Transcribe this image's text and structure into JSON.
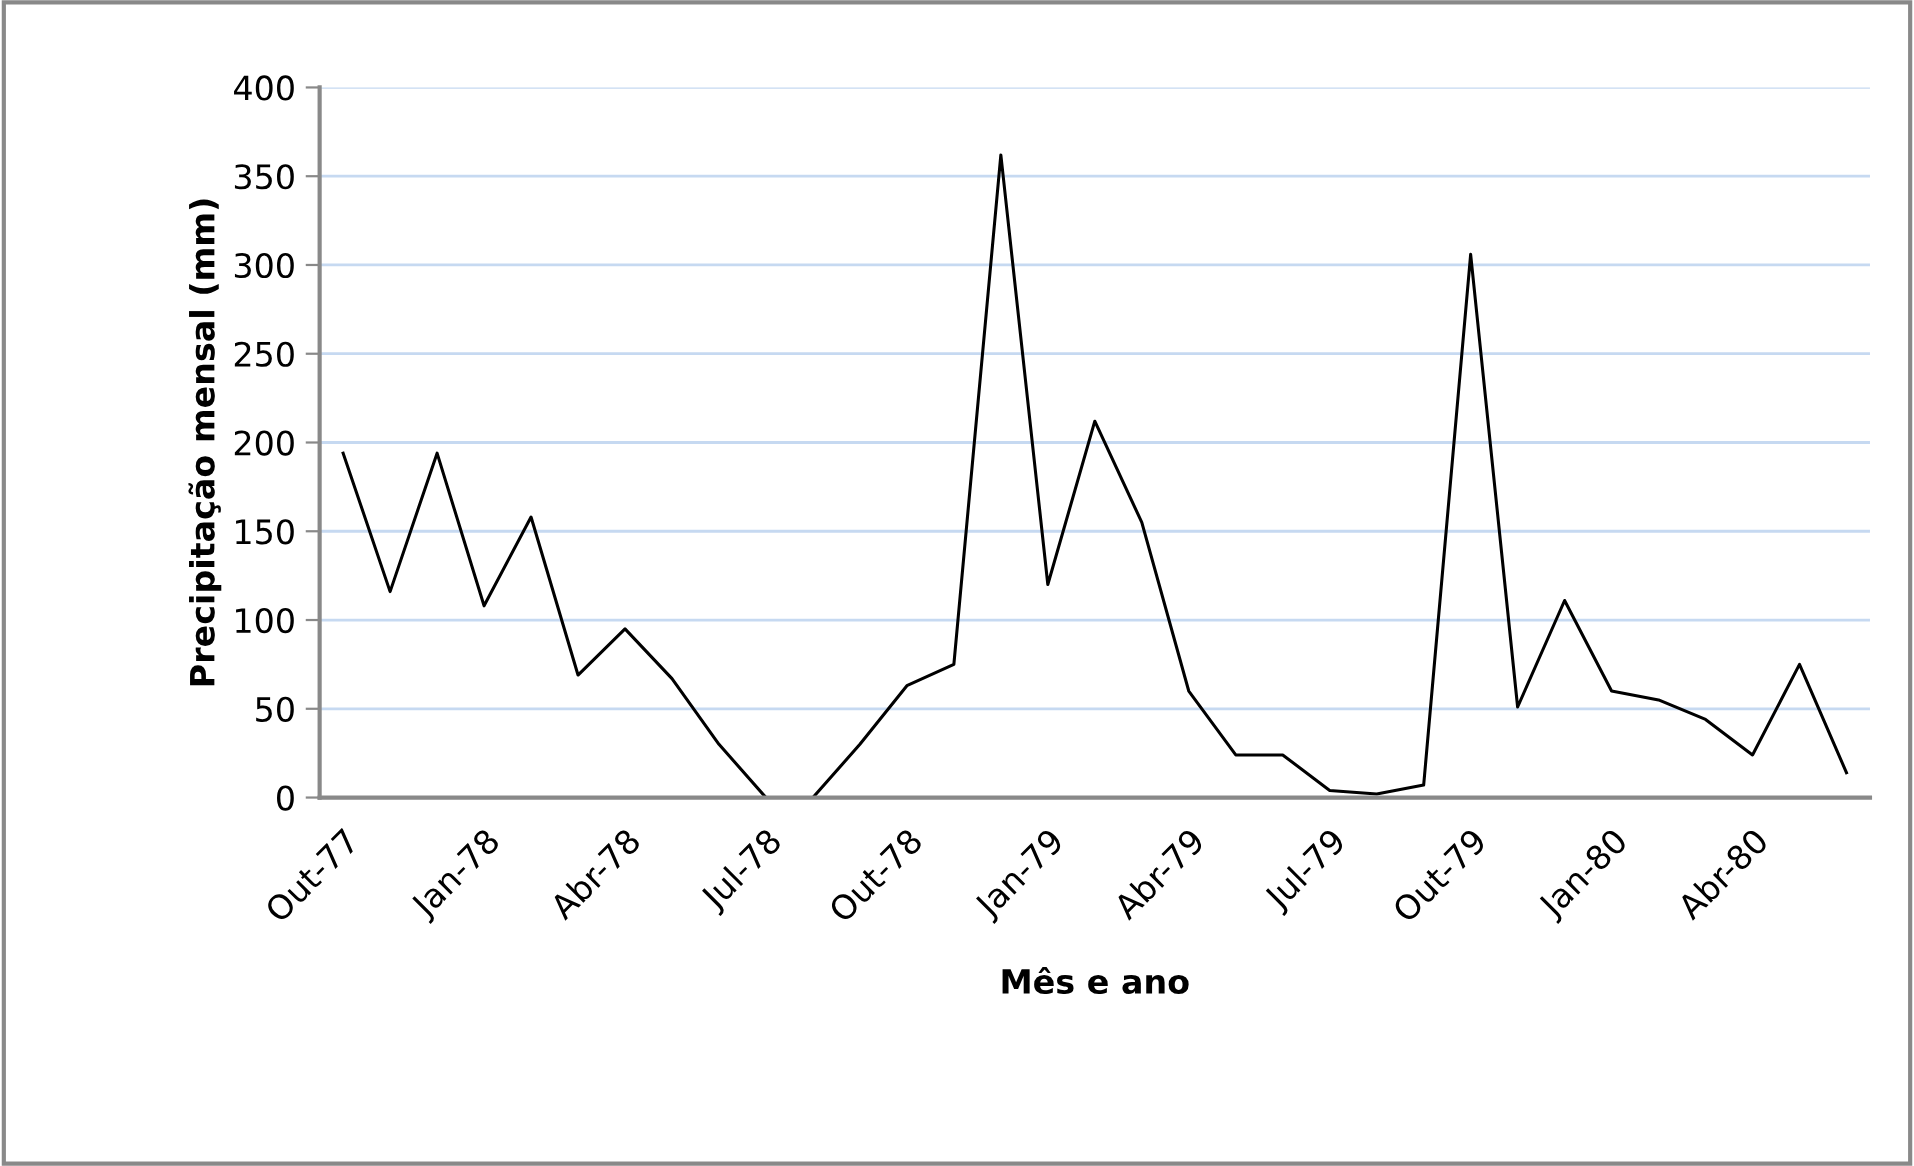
{
  "chart_data": {
    "type": "line",
    "xlabel": "Mês e ano",
    "ylabel": "Precipitação mensal (mm)",
    "categories": [
      "Out-77",
      null,
      null,
      "Jan-78",
      null,
      null,
      "Abr-78",
      null,
      null,
      "Jul-78",
      null,
      null,
      "Out-78",
      null,
      null,
      "Jan-79",
      null,
      null,
      "Abr-79",
      null,
      null,
      "Jul-79",
      null,
      null,
      "Out-79",
      null,
      null,
      "Jan-80",
      null,
      null,
      "Abr-80",
      null,
      null
    ],
    "series": [
      {
        "color": "#000000",
        "values": [
          194,
          116,
          194,
          108,
          158,
          69,
          95,
          67,
          30,
          0,
          0,
          30,
          63,
          75,
          362,
          120,
          212,
          155,
          60,
          24,
          24,
          4,
          2,
          7,
          306,
          51,
          111,
          60,
          55,
          44,
          24,
          75,
          14
        ]
      }
    ],
    "ylim": [
      0,
      400
    ],
    "yticks": [
      0,
      50,
      100,
      150,
      200,
      250,
      300,
      350,
      400
    ],
    "grid": "y",
    "legend": false,
    "marker": "none",
    "line_style": "solid"
  }
}
